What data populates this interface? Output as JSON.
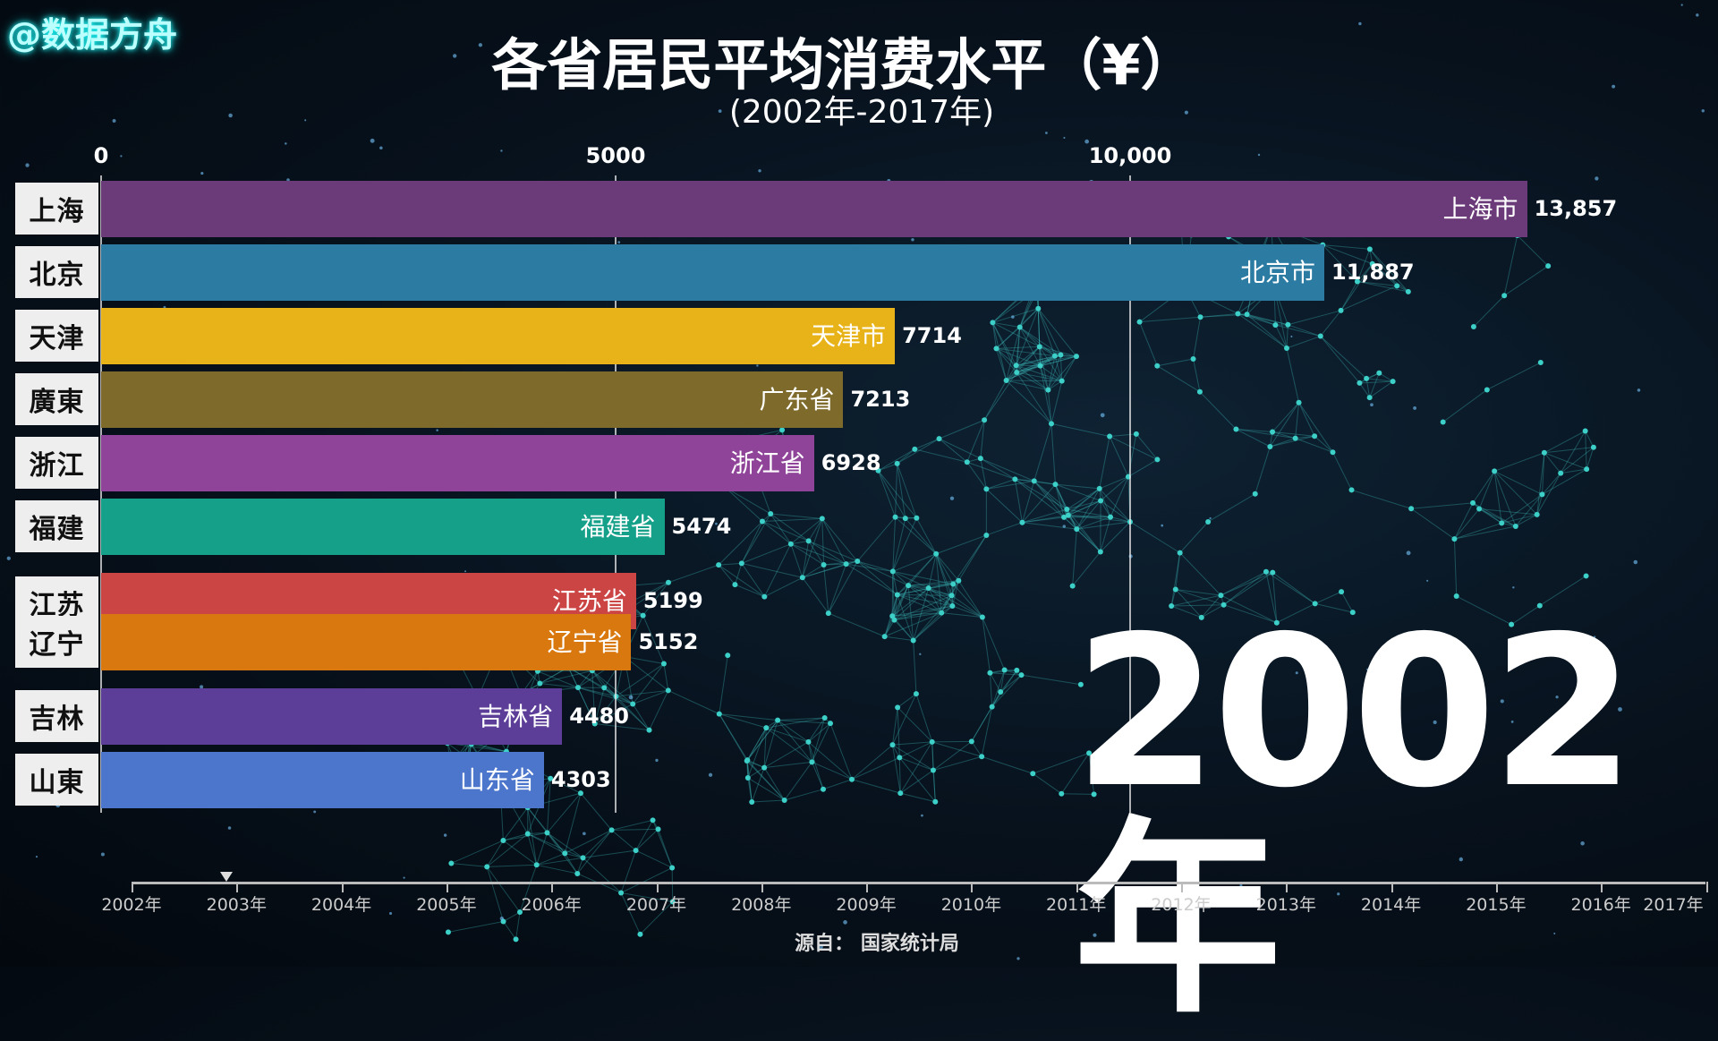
{
  "watermark": "@数据方舟",
  "title": "各省居民平均消费水平（¥）",
  "subtitle": "(2002年-2017年)",
  "current_year": "2002年",
  "source": "源自：  国家统计局",
  "chart_data": {
    "type": "bar",
    "orientation": "horizontal",
    "title": "各省居民平均消费水平（¥）",
    "xlim": [
      0,
      14500
    ],
    "x_ticks": [
      {
        "value": 0,
        "label": "0"
      },
      {
        "value": 5000,
        "label": "5000"
      },
      {
        "value": 10000,
        "label": "10,000"
      }
    ],
    "categories": [
      "上海市",
      "北京市",
      "天津市",
      "广东省",
      "浙江省",
      "福建省",
      "江苏省",
      "辽宁省",
      "吉林省",
      "山东省"
    ],
    "values": [
      13857,
      11887,
      7714,
      7213,
      6928,
      5474,
      5199,
      5152,
      4480,
      4303
    ],
    "value_labels": [
      "13,857",
      "11,887",
      "7714",
      "7213",
      "6928",
      "5474",
      "5199",
      "5152",
      "4480",
      "4303"
    ],
    "logos": [
      "上海",
      "北京",
      "天津",
      "廣東",
      "浙江",
      "福建",
      "江苏",
      "辽宁",
      "吉林",
      "山東"
    ],
    "colors": [
      "#6b3a78",
      "#2b7ba3",
      "#e8b318",
      "#7e6a2a",
      "#8f4499",
      "#15a08a",
      "#cc4545",
      "#d9780f",
      "#5c3e98",
      "#4c75cc"
    ]
  },
  "timeline": {
    "years": [
      "2002年",
      "2003年",
      "2004年",
      "2005年",
      "2006年",
      "2007年",
      "2008年",
      "2009年",
      "2010年",
      "2011年",
      "2012年",
      "2013年",
      "2014年",
      "2015年",
      "2016年",
      "2017年"
    ],
    "progress_year": 2002.9
  }
}
